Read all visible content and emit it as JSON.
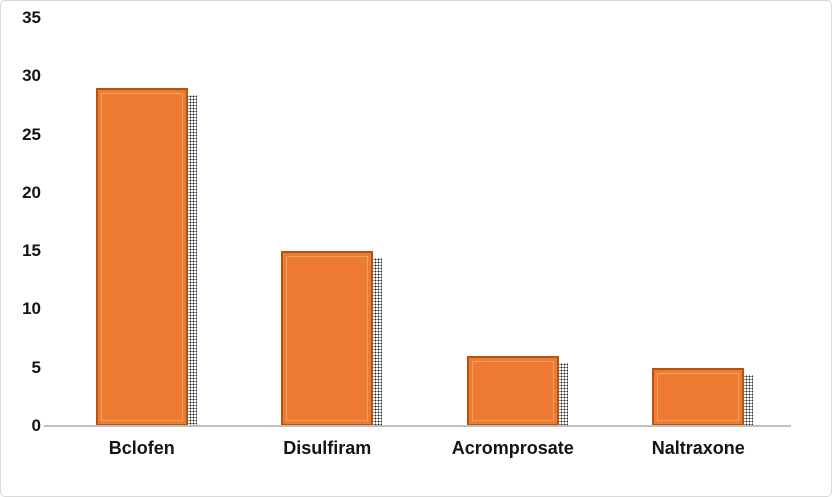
{
  "chart_data": {
    "type": "bar",
    "title": "",
    "xlabel": "",
    "ylabel": "",
    "categories": [
      "Bclofen",
      "Disulfiram",
      "Acromprosate",
      "Naltraxone"
    ],
    "values": [
      29,
      15,
      6,
      5
    ],
    "ylim": [
      0,
      35
    ],
    "yticks": [
      0,
      5,
      10,
      15,
      20,
      25,
      30,
      35
    ],
    "grid": false,
    "legend": "none",
    "bar_fill": "#ED7B31",
    "bar_border": "#B4540F",
    "bar_inner_line": "#F2A169",
    "shadow_style": "stippled-dots",
    "axis_line_color": "#BFBFBF",
    "text_color": "#141414",
    "frame_border_color": "#D9D9D9",
    "background": "#FFFFFF"
  }
}
